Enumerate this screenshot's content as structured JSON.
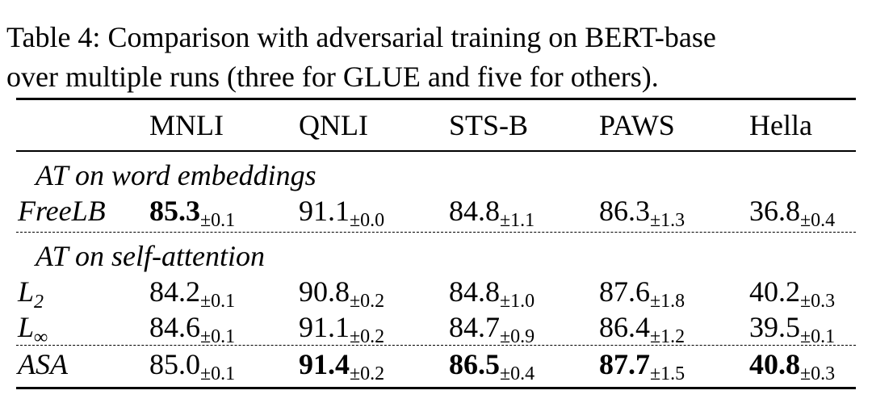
{
  "caption": [
    "Table 4: Comparison with adversarial training on BERT-base",
    "over multiple runs (three for GLUE and five for others)."
  ],
  "table": {
    "columns": [
      "MNLI",
      "QNLI",
      "STS-B",
      "PAWS",
      "Hella"
    ],
    "sections": [
      {
        "title": "AT on word embeddings",
        "rows": [
          {
            "label": "FreeLB",
            "cells": [
              {
                "value": "85.3",
                "std": "±0.1",
                "bold": true
              },
              {
                "value": "91.1",
                "std": "±0.0",
                "bold": false
              },
              {
                "value": "84.8",
                "std": "±1.1",
                "bold": false
              },
              {
                "value": "86.3",
                "std": "±1.3",
                "bold": false
              },
              {
                "value": "36.8",
                "std": "±0.4",
                "bold": false
              }
            ]
          }
        ]
      },
      {
        "title": "AT on self-attention",
        "rows": [
          {
            "label": "L",
            "label_sub": "2",
            "cells": [
              {
                "value": "84.2",
                "std": "±0.1",
                "bold": false
              },
              {
                "value": "90.8",
                "std": "±0.2",
                "bold": false
              },
              {
                "value": "84.8",
                "std": "±1.0",
                "bold": false
              },
              {
                "value": "87.6",
                "std": "±1.8",
                "bold": false
              },
              {
                "value": "40.2",
                "std": "±0.3",
                "bold": false
              }
            ]
          },
          {
            "label": "L",
            "label_sub": "∞",
            "cells": [
              {
                "value": "84.6",
                "std": "±0.1",
                "bold": false
              },
              {
                "value": "91.1",
                "std": "±0.2",
                "bold": false
              },
              {
                "value": "84.7",
                "std": "±0.9",
                "bold": false
              },
              {
                "value": "86.4",
                "std": "±1.2",
                "bold": false
              },
              {
                "value": "39.5",
                "std": "±0.1",
                "bold": false
              }
            ]
          },
          {
            "label": "ASA",
            "separator_above": true,
            "cells": [
              {
                "value": "85.0",
                "std": "±0.1",
                "bold": false
              },
              {
                "value": "91.4",
                "std": "±0.2",
                "bold": true
              },
              {
                "value": "86.5",
                "std": "±0.4",
                "bold": true
              },
              {
                "value": "87.7",
                "std": "±1.5",
                "bold": true
              },
              {
                "value": "40.8",
                "std": "±0.3",
                "bold": true
              }
            ]
          }
        ]
      }
    ]
  }
}
